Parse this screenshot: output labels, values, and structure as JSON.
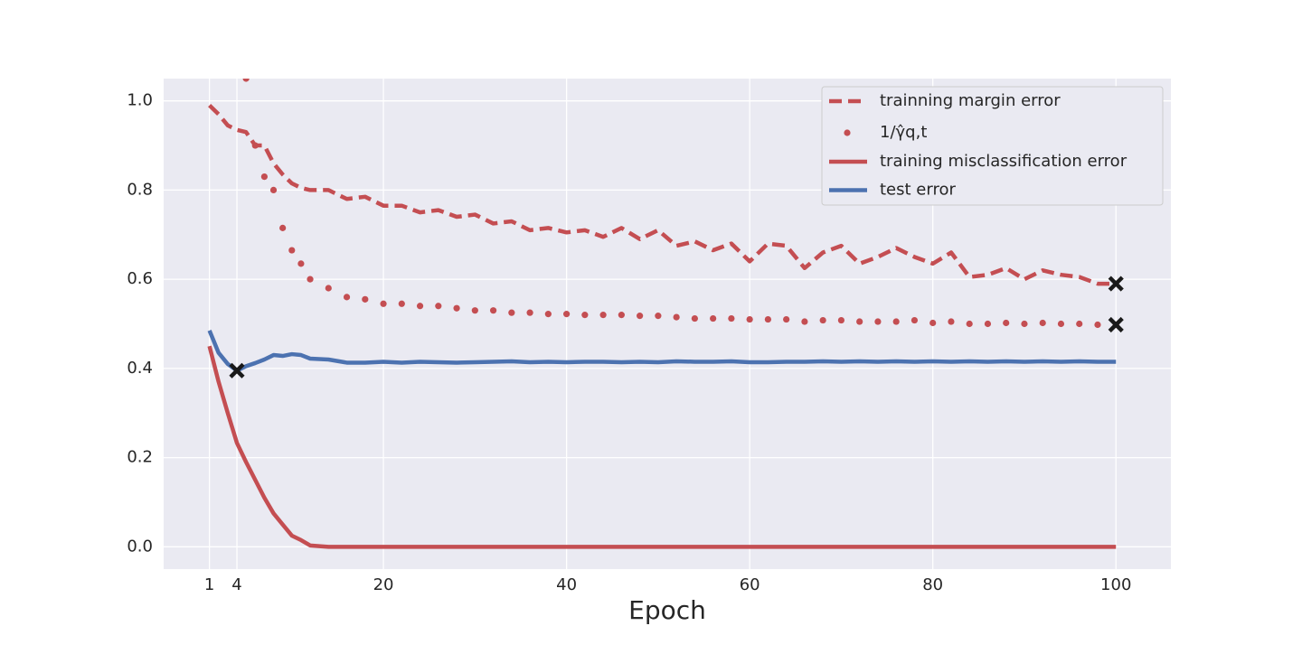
{
  "chart_data": {
    "type": "line",
    "xlabel": "Epoch",
    "x": [
      1,
      2,
      3,
      4,
      5,
      6,
      7,
      8,
      9,
      10,
      11,
      12,
      14,
      16,
      18,
      20,
      22,
      24,
      26,
      28,
      30,
      32,
      34,
      36,
      38,
      40,
      42,
      44,
      46,
      48,
      50,
      52,
      54,
      56,
      58,
      60,
      62,
      64,
      66,
      68,
      70,
      72,
      74,
      76,
      78,
      80,
      82,
      84,
      86,
      88,
      90,
      92,
      94,
      96,
      98,
      100
    ],
    "series": [
      {
        "name": "trainning margin error",
        "color": "#c44e52",
        "style": "dashed",
        "values": [
          0.99,
          0.97,
          0.945,
          0.935,
          0.93,
          0.9,
          0.9,
          0.86,
          0.835,
          0.815,
          0.805,
          0.8,
          0.8,
          0.78,
          0.785,
          0.765,
          0.765,
          0.75,
          0.755,
          0.74,
          0.745,
          0.725,
          0.73,
          0.71,
          0.715,
          0.705,
          0.71,
          0.695,
          0.715,
          0.69,
          0.71,
          0.675,
          0.685,
          0.665,
          0.68,
          0.64,
          0.68,
          0.675,
          0.625,
          0.66,
          0.675,
          0.635,
          0.65,
          0.67,
          0.65,
          0.635,
          0.66,
          0.605,
          0.61,
          0.625,
          0.6,
          0.62,
          0.61,
          0.605,
          0.59,
          0.59
        ]
      },
      {
        "name": "1/γ̂q,t",
        "color": "#c44e52",
        "style": "dots",
        "values": [
          null,
          null,
          null,
          null,
          1.05,
          0.9,
          0.83,
          0.8,
          0.715,
          0.665,
          0.635,
          0.6,
          0.58,
          0.56,
          0.555,
          0.545,
          0.545,
          0.54,
          0.54,
          0.535,
          0.53,
          0.53,
          0.525,
          0.525,
          0.522,
          0.522,
          0.52,
          0.52,
          0.52,
          0.518,
          0.518,
          0.515,
          0.512,
          0.512,
          0.512,
          0.51,
          0.51,
          0.51,
          0.505,
          0.508,
          0.508,
          0.505,
          0.505,
          0.505,
          0.508,
          0.502,
          0.505,
          0.5,
          0.5,
          0.502,
          0.5,
          0.502,
          0.5,
          0.5,
          0.498,
          0.498
        ]
      },
      {
        "name": "training misclassification error",
        "color": "#c44e52",
        "style": "solid",
        "values": [
          0.45,
          0.37,
          0.3,
          0.233,
          0.19,
          0.15,
          0.11,
          0.075,
          0.05,
          0.025,
          0.015,
          0.003,
          0,
          0,
          0,
          0,
          0,
          0,
          0,
          0,
          0,
          0,
          0,
          0,
          0,
          0,
          0,
          0,
          0,
          0,
          0,
          0,
          0,
          0,
          0,
          0,
          0,
          0,
          0,
          0,
          0,
          0,
          0,
          0,
          0,
          0,
          0,
          0,
          0,
          0,
          0,
          0,
          0,
          0,
          0,
          0
        ]
      },
      {
        "name": "test error",
        "color": "#4c72b0",
        "style": "solid",
        "values": [
          0.485,
          0.435,
          0.41,
          0.395,
          0.405,
          0.412,
          0.42,
          0.43,
          0.428,
          0.432,
          0.43,
          0.422,
          0.42,
          0.413,
          0.413,
          0.415,
          0.413,
          0.415,
          0.414,
          0.413,
          0.414,
          0.415,
          0.416,
          0.414,
          0.415,
          0.414,
          0.415,
          0.415,
          0.414,
          0.415,
          0.414,
          0.416,
          0.415,
          0.415,
          0.416,
          0.414,
          0.414,
          0.415,
          0.415,
          0.416,
          0.415,
          0.416,
          0.415,
          0.416,
          0.415,
          0.416,
          0.415,
          0.416,
          0.415,
          0.416,
          0.415,
          0.416,
          0.415,
          0.416,
          0.415,
          0.415
        ]
      }
    ],
    "highlights": [
      {
        "x": 4,
        "y": 0.395
      },
      {
        "x": 100,
        "y": 0.59
      },
      {
        "x": 100,
        "y": 0.498
      }
    ],
    "highlight_color": "#1a1a1a",
    "xlim": [
      -4,
      106
    ],
    "ylim": [
      -0.05,
      1.05
    ],
    "xticks": [
      1,
      4,
      20,
      40,
      60,
      80,
      100
    ],
    "yticks": [
      {
        "value": 0,
        "label": "0.0"
      },
      0.2,
      0.4,
      0.6,
      0.8,
      {
        "value": 1,
        "label": "1.0"
      }
    ],
    "grid": true,
    "legend": "upper right"
  }
}
